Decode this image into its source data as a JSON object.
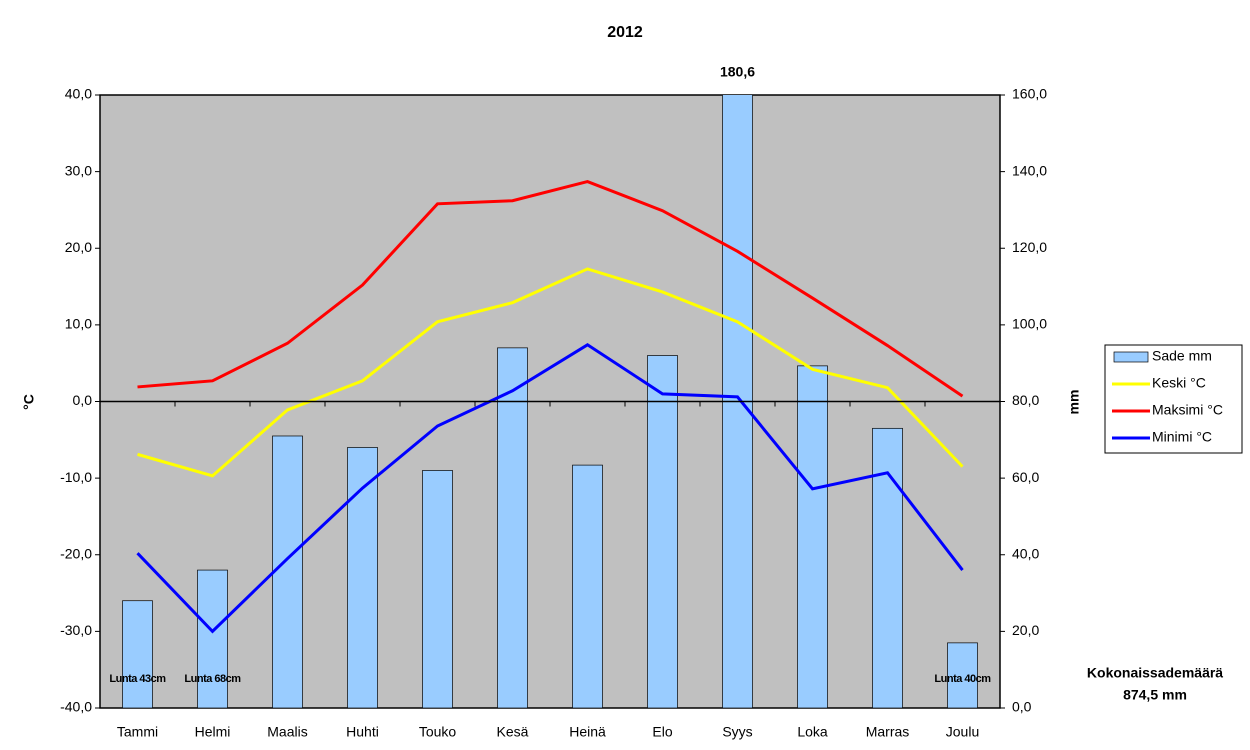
{
  "chart_data": {
    "type": "combo",
    "title": "2012",
    "y_label": "°C",
    "y2_label": "mm",
    "categories": [
      "Tammi",
      "Helmi",
      "Maalis",
      "Huhti",
      "Touko",
      "Kesä",
      "Heinä",
      "Elo",
      "Syys",
      "Loka",
      "Marras",
      "Joulu"
    ],
    "series": [
      {
        "name": "Sade mm",
        "type": "bar",
        "axis": "y2",
        "color": "#99ccff",
        "values": [
          28,
          36,
          71,
          68,
          62,
          94,
          63.4,
          92,
          180.6,
          89.3,
          73,
          17
        ],
        "value_labels": [
          null,
          null,
          null,
          null,
          null,
          null,
          null,
          null,
          "180,6",
          null,
          null,
          null
        ]
      },
      {
        "name": "Keski °C",
        "type": "line",
        "color": "#ffff00",
        "values": [
          -6.9,
          -9.7,
          -1.1,
          2.7,
          10.4,
          12.9,
          17.3,
          14.3,
          10.4,
          4.2,
          1.8,
          -8.5
        ]
      },
      {
        "name": "Maksimi °C",
        "type": "line",
        "color": "#ff0000",
        "values": [
          1.9,
          2.7,
          7.6,
          15.2,
          25.8,
          26.2,
          28.7,
          24.9,
          19.6,
          13.5,
          7.3,
          0.7
        ]
      },
      {
        "name": "Minimi °C",
        "type": "line",
        "color": "#0000ff",
        "values": [
          -19.8,
          -30.0,
          -20.5,
          -11.3,
          -3.2,
          1.4,
          7.4,
          1.0,
          0.6,
          -11.4,
          -9.3,
          -22.0
        ]
      }
    ],
    "snow_labels": [
      "Lunta 43cm",
      "Lunta 68cm",
      null,
      null,
      null,
      null,
      null,
      null,
      null,
      null,
      null,
      "Lunta 40cm"
    ],
    "annotations": [
      "Kokonaissademäärä",
      "874,5 mm"
    ],
    "ylim": [
      -40,
      40
    ],
    "yticks": [
      {
        "value": -40,
        "label": "-40,0"
      },
      {
        "value": -30,
        "label": "-30,0"
      },
      {
        "value": -20,
        "label": "-20,0"
      },
      {
        "value": -10,
        "label": "-10,0"
      },
      {
        "value": 0,
        "label": "0,0"
      },
      {
        "value": 10,
        "label": "10,0"
      },
      {
        "value": 20,
        "label": "20,0"
      },
      {
        "value": 30,
        "label": "30,0"
      },
      {
        "value": 40,
        "label": "40,0"
      }
    ],
    "y2lim": [
      0,
      160
    ],
    "y2ticks": [
      {
        "value": 0,
        "label": "0,0"
      },
      {
        "value": 20,
        "label": "20,0"
      },
      {
        "value": 40,
        "label": "40,0"
      },
      {
        "value": 60,
        "label": "60,0"
      },
      {
        "value": 80,
        "label": "80,0"
      },
      {
        "value": 100,
        "label": "100,0"
      },
      {
        "value": 120,
        "label": "120,0"
      },
      {
        "value": 140,
        "label": "140,0"
      },
      {
        "value": 160,
        "label": "160,0"
      }
    ],
    "plot_background": "#c0c0c0",
    "legend": "right"
  }
}
